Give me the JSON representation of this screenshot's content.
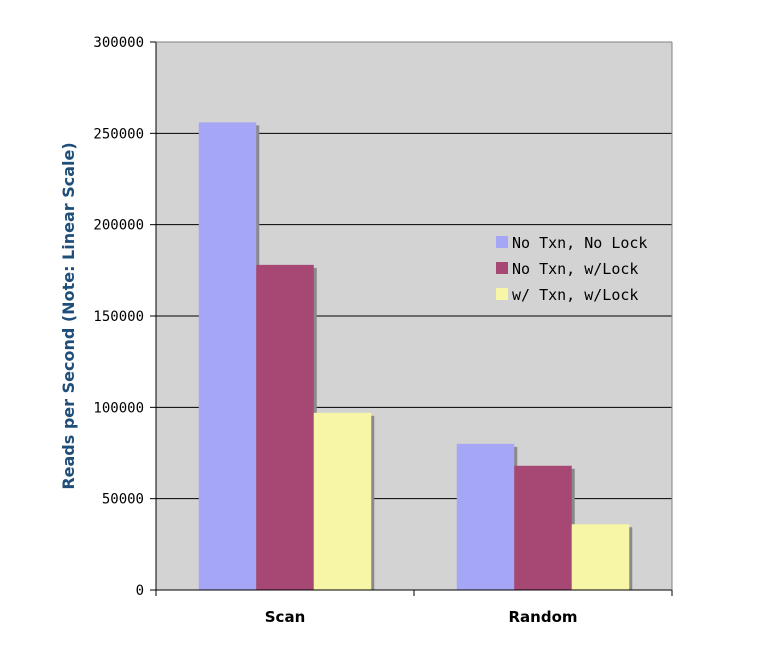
{
  "chart_data": {
    "type": "bar",
    "title": "",
    "xlabel": "",
    "ylabel": "Reads per Second (Note: Linear Scale)",
    "ylim": [
      0,
      300000
    ],
    "yticks": [
      0,
      50000,
      100000,
      150000,
      200000,
      250000,
      300000
    ],
    "ytick_labels": [
      "0",
      "50000",
      "100000",
      "150000",
      "200000",
      "250000",
      "300000"
    ],
    "categories": [
      "Scan",
      "Random"
    ],
    "series": [
      {
        "name": "No Txn, No Lock",
        "color": "#a6a6f6",
        "values": [
          256000,
          80000
        ]
      },
      {
        "name": "No Txn, w/Lock",
        "color": "#a64873",
        "values": [
          178000,
          68000
        ]
      },
      {
        "name": "w/ Txn, w/Lock",
        "color": "#f7f6a6",
        "values": [
          97000,
          36000
        ]
      }
    ],
    "grid": true,
    "legend": "right"
  }
}
